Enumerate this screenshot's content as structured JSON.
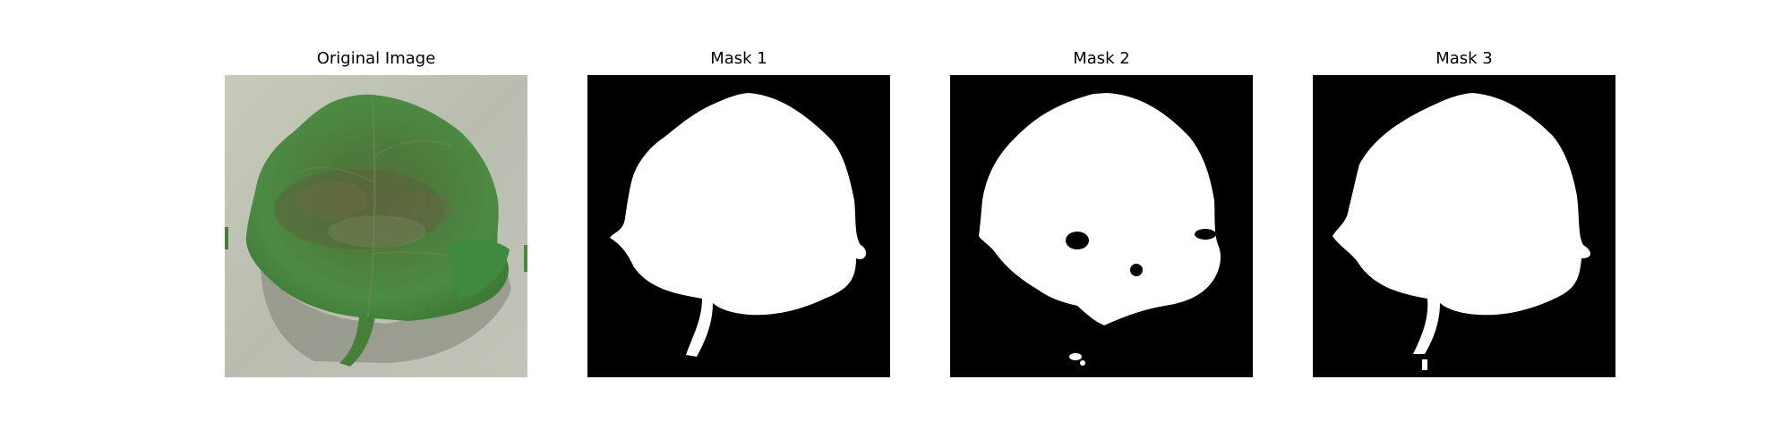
{
  "figure": {
    "panels": [
      {
        "title": "Original Image",
        "content": "photo of a green leaf on a grey surface"
      },
      {
        "title": "Mask 1",
        "content": "binary segmentation mask (white leaf on black)"
      },
      {
        "title": "Mask 2",
        "content": "binary segmentation mask with holes and specks"
      },
      {
        "title": "Mask 3",
        "content": "binary segmentation mask (white leaf on black)"
      }
    ]
  },
  "colors": {
    "background": "#ffffff",
    "mask_background": "#000000",
    "mask_foreground": "#ffffff",
    "leaf_green": "#4f8a43",
    "surface_grey": "#c9ccbd"
  }
}
